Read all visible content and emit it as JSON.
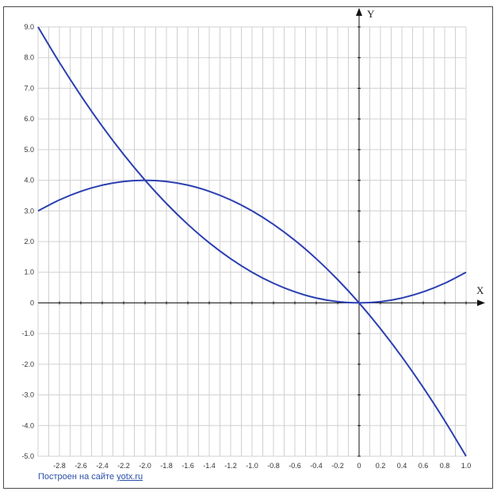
{
  "chart_data": {
    "type": "line",
    "x_axis_name": "X",
    "y_axis_name": "Y",
    "xlim": [
      -3.0,
      1.0
    ],
    "ylim": [
      -5.0,
      9.0
    ],
    "grid": true,
    "x_ticks": [
      "-2.8",
      "-2.6",
      "-2.4",
      "-2.2",
      "-2.0",
      "-1.8",
      "-1.6",
      "-1.4",
      "-1.2",
      "-1.0",
      "-0.8",
      "-0.6",
      "-0.4",
      "-0.2",
      "0",
      "0.2",
      "0.4",
      "0.6",
      "0.8",
      "1.0"
    ],
    "y_ticks": [
      "9.0",
      "8.0",
      "7.0",
      "6.0",
      "5.0",
      "4.0",
      "3.0",
      "2.0",
      "1.0",
      "0",
      "-1.0",
      "-2.0",
      "-3.0",
      "-4.0",
      "-5.0"
    ],
    "series": [
      {
        "color": "#2b3fb0",
        "x": [
          -3.0,
          -2.8,
          -2.6,
          -2.4,
          -2.2,
          -2.0,
          -1.8,
          -1.6,
          -1.4,
          -1.2,
          -1.0,
          -0.8,
          -0.6,
          -0.4,
          -0.2,
          0.0,
          0.2,
          0.4,
          0.6,
          0.8,
          1.0
        ],
        "y": [
          9.0,
          7.84,
          6.76,
          5.76,
          4.84,
          4.0,
          3.24,
          2.56,
          1.96,
          1.44,
          1.0,
          0.64,
          0.36,
          0.16,
          0.04,
          0.0,
          0.04,
          0.16,
          0.36,
          0.64,
          1.0
        ]
      },
      {
        "color": "#2b3fb0",
        "x": [
          -3.0,
          -2.8,
          -2.6,
          -2.4,
          -2.2,
          -2.0,
          -1.8,
          -1.6,
          -1.4,
          -1.2,
          -1.0,
          -0.8,
          -0.6,
          -0.4,
          -0.2,
          0.0,
          0.2,
          0.4,
          0.6,
          0.8,
          1.0
        ],
        "y": [
          3.0,
          3.36,
          3.64,
          3.84,
          3.96,
          4.0,
          3.96,
          3.84,
          3.64,
          3.36,
          3.0,
          2.56,
          2.04,
          1.44,
          0.76,
          0.0,
          -0.84,
          -1.76,
          -2.76,
          -3.84,
          -5.0
        ]
      }
    ]
  },
  "credit": {
    "text": "Построен на сайте",
    "link": "yotx.ru"
  }
}
